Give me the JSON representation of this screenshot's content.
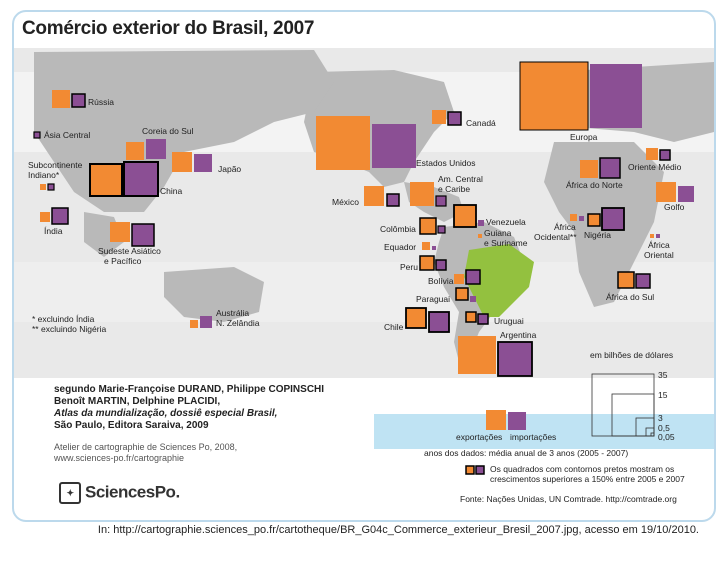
{
  "title": "Comércio exterior do Brasil, 2007",
  "colors": {
    "exports": "#f28a33",
    "imports": "#8b4f94",
    "land": "#b8b8b8",
    "ocean": "#e4e4e4",
    "frame": "#bcd9ec",
    "highlight": "#000000"
  },
  "regions": [
    {
      "id": "russia",
      "label": "Rússia"
    },
    {
      "id": "asia-central",
      "label": "Ásia Central"
    },
    {
      "id": "coreia-do-sul",
      "label": "Coreia do Sul"
    },
    {
      "id": "subcontinente-indiano",
      "label": "Subcontinente Indiano*"
    },
    {
      "id": "japao",
      "label": "Japão"
    },
    {
      "id": "china",
      "label": "China"
    },
    {
      "id": "india",
      "label": "Índia"
    },
    {
      "id": "sudeste-asiatico",
      "label": "Sudeste Asiático e Pacífico"
    },
    {
      "id": "australia",
      "label": "Austrália N. Zelândia"
    },
    {
      "id": "canada",
      "label": "Canadá"
    },
    {
      "id": "estados-unidos",
      "label": "Estados Unidos"
    },
    {
      "id": "mexico",
      "label": "México"
    },
    {
      "id": "am-central",
      "label": "Am. Central e Caribe"
    },
    {
      "id": "colombia",
      "label": "Colômbia"
    },
    {
      "id": "venezuela",
      "label": "Venezuela"
    },
    {
      "id": "guiana",
      "label": "Guiana e Suriname"
    },
    {
      "id": "equador",
      "label": "Equador"
    },
    {
      "id": "peru",
      "label": "Peru"
    },
    {
      "id": "bolivia",
      "label": "Bolívia"
    },
    {
      "id": "paraguai",
      "label": "Paraguai"
    },
    {
      "id": "chile",
      "label": "Chile"
    },
    {
      "id": "uruguai",
      "label": "Uruguai"
    },
    {
      "id": "argentina",
      "label": "Argentina"
    },
    {
      "id": "europa",
      "label": "Europa"
    },
    {
      "id": "oriente-medio",
      "label": "Oriente Médio"
    },
    {
      "id": "africa-do-norte",
      "label": "África do Norte"
    },
    {
      "id": "golfo",
      "label": "Golfo"
    },
    {
      "id": "africa-ocidental",
      "label": "África Ocidental**"
    },
    {
      "id": "nigeria",
      "label": "Nigéria"
    },
    {
      "id": "africa-oriental",
      "label": "África Oriental"
    },
    {
      "id": "africa-do-sul",
      "label": "África do Sul"
    }
  ],
  "notes": [
    "* excluindo Índia",
    "** excluindo Nigéria"
  ],
  "credits": {
    "line1": "segundo Marie-Françoise DURAND, Philippe COPINSCHI",
    "line2": "Benoît MARTIN, Delphine PLACIDI,",
    "line3": "Atlas da mundialização, dossiê especial Brasil,",
    "line4": "São Paulo, Editora Saraiva, 2009",
    "atelier1": "Atelier de cartographie de Sciences Po, 2008,",
    "atelier2": "www.sciences-po.fr/cartographie",
    "logo": "SciencesPo."
  },
  "legend": {
    "unit": "em bilhões de dólares",
    "scale_values": [
      "35",
      "15",
      "3",
      "0,5",
      "0,05"
    ],
    "exports_label": "exportações",
    "imports_label": "importações",
    "period": "anos dos dados: média anual de 3 anos (2005 - 2007)",
    "highlight_note": "Os quadrados com contornos pretos mostram os crescimentos superiores a 150% entre 2005 e 2007",
    "source": "Fonte: Nações Unidas, UN Comtrade. http://comtrade.org"
  },
  "footer": "In: http://cartographie.sciences_po.fr/cartotheque/BR_G04c_Commerce_exterieur_Bresil_2007.jpg, acesso em 19/10/2010."
}
